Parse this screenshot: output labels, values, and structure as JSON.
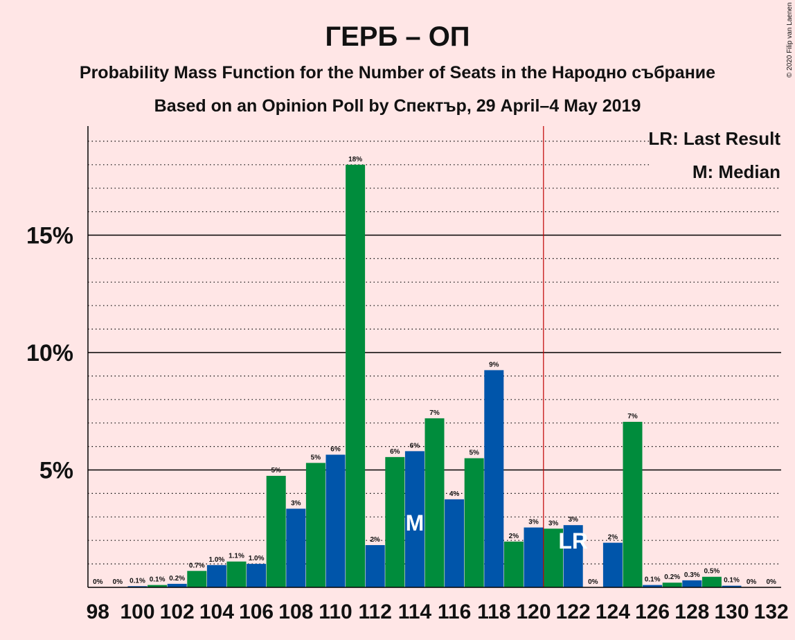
{
  "chart_data": {
    "type": "bar",
    "title": "ГЕРБ – ОП",
    "subtitle_line1": "Probability Mass Function for the Number of Seats in the Народно събрание",
    "subtitle_line2": "Based on an Opinion Poll by Спектър, 29 April–4 May 2019",
    "copyright": "© 2020 Filip van Laenen",
    "legend": {
      "last_result": "LR: Last Result",
      "median": "M: Median",
      "placement": "top-right"
    },
    "x": [
      98,
      99,
      100,
      101,
      102,
      103,
      104,
      105,
      106,
      107,
      108,
      109,
      110,
      111,
      112,
      113,
      114,
      115,
      116,
      117,
      118,
      119,
      120,
      121,
      122,
      123,
      124,
      125,
      126,
      127,
      128,
      129,
      130,
      131,
      132
    ],
    "values": [
      0,
      0,
      0.05,
      0.1,
      0.15,
      0.7,
      0.95,
      1.1,
      1.0,
      4.75,
      3.35,
      5.3,
      5.65,
      18.0,
      1.8,
      5.55,
      5.8,
      7.2,
      3.75,
      5.5,
      9.25,
      1.95,
      2.55,
      2.5,
      2.65,
      0,
      1.9,
      7.05,
      0.1,
      0.2,
      0.3,
      0.45,
      0.07,
      0,
      0
    ],
    "value_labels": [
      "0%",
      "0%",
      "0.1%",
      "0.1%",
      "0.2%",
      "0.7%",
      "1.0%",
      "1.1%",
      "1.0%",
      "5%",
      "3%",
      "5%",
      "6%",
      "18%",
      "2%",
      "6%",
      "6%",
      "7%",
      "4%",
      "5%",
      "9%",
      "2%",
      "3%",
      "3%",
      "3%",
      "0%",
      "2%",
      "7%",
      "0.1%",
      "0.2%",
      "0.3%",
      "0.5%",
      "0.1%",
      "0%",
      "0%"
    ],
    "x_tick_labels": [
      "98",
      "100",
      "102",
      "104",
      "106",
      "108",
      "110",
      "112",
      "114",
      "116",
      "118",
      "120",
      "122",
      "124",
      "126",
      "128",
      "130",
      "132"
    ],
    "y_tick_labels": [
      "5%",
      "10%",
      "15%"
    ],
    "ylim": [
      0,
      19.5
    ],
    "median": 114,
    "median_marker": "M",
    "last_result": 122,
    "last_result_marker": "LR",
    "majority_line": 120.5,
    "colors": {
      "background": "#FFE6E6",
      "green": "#008C3C",
      "blue": "#0055AA",
      "majority_line": "#C00000",
      "text": "#111111"
    }
  }
}
